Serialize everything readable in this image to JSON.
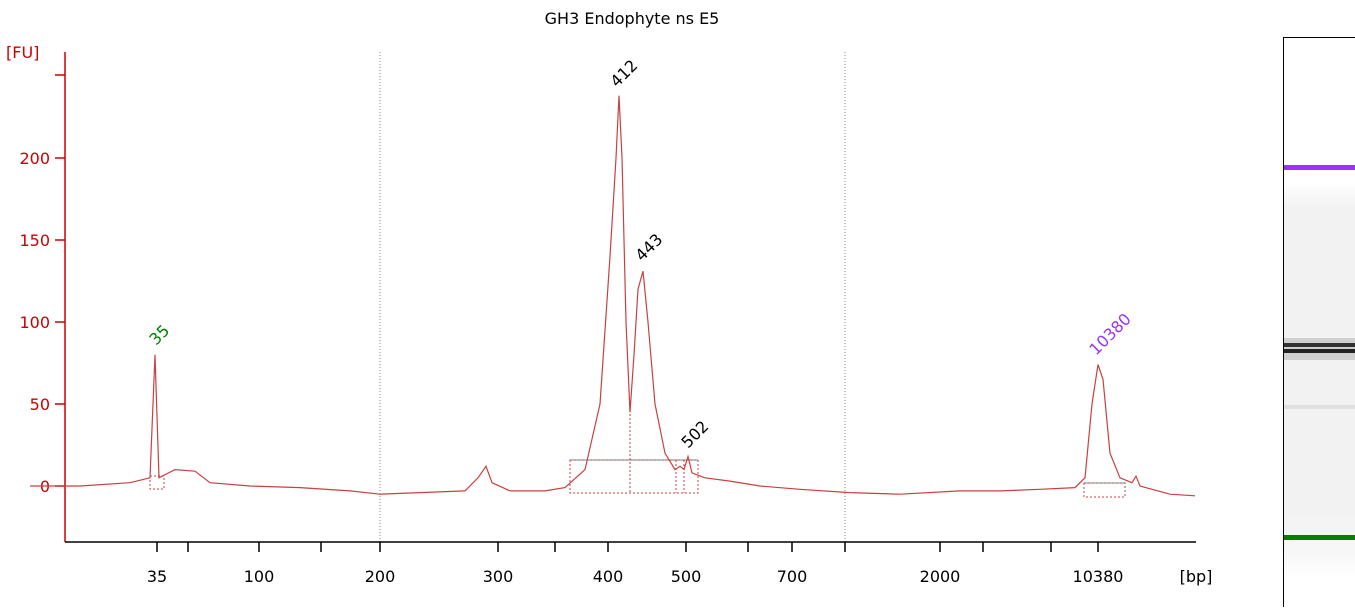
{
  "chart_data": {
    "type": "line",
    "title": "GH3 Endophyte ns E5",
    "ylabel": "[FU]",
    "xlabel": "[bp]",
    "ylim": [
      -35,
      260
    ],
    "yticks": [
      0,
      50,
      100,
      150,
      200
    ],
    "xtick_labels": [
      "35",
      "100",
      "200",
      "300",
      "400",
      "500",
      "700",
      "2000",
      "10380"
    ],
    "colors": {
      "trace": "#c84040",
      "axis": "#cc0000",
      "lower_marker": "#008000",
      "upper_marker": "#9933ff",
      "baseline": "#4a9a9a"
    },
    "peaks": [
      {
        "label": "35",
        "fu": 80,
        "color": "#008000"
      },
      {
        "label": "412",
        "fu": 238,
        "color": "#000000"
      },
      {
        "label": "443",
        "fu": 131,
        "color": "#000000"
      },
      {
        "label": "502",
        "fu": 18,
        "color": "#000000"
      },
      {
        "label": "10380",
        "fu": 74,
        "color": "#9933ff"
      }
    ],
    "trace_points": [
      [
        30,
        0
      ],
      [
        80,
        0
      ],
      [
        130,
        2
      ],
      [
        150,
        5
      ],
      [
        155,
        80
      ],
      [
        159,
        5
      ],
      [
        175,
        10
      ],
      [
        195,
        9
      ],
      [
        210,
        2
      ],
      [
        250,
        0
      ],
      [
        300,
        -1
      ],
      [
        350,
        -3
      ],
      [
        380,
        -5
      ],
      [
        420,
        -4
      ],
      [
        465,
        -3
      ],
      [
        478,
        5
      ],
      [
        486,
        12
      ],
      [
        492,
        2
      ],
      [
        510,
        -3
      ],
      [
        545,
        -3
      ],
      [
        565,
        -1
      ],
      [
        585,
        10
      ],
      [
        600,
        50
      ],
      [
        610,
        140
      ],
      [
        616,
        200
      ],
      [
        619,
        238
      ],
      [
        622,
        200
      ],
      [
        626,
        100
      ],
      [
        630,
        45
      ],
      [
        634,
        80
      ],
      [
        638,
        120
      ],
      [
        643,
        131
      ],
      [
        648,
        100
      ],
      [
        655,
        50
      ],
      [
        665,
        20
      ],
      [
        675,
        10
      ],
      [
        680,
        12
      ],
      [
        684,
        10
      ],
      [
        688,
        18
      ],
      [
        692,
        8
      ],
      [
        705,
        5
      ],
      [
        730,
        3
      ],
      [
        760,
        0
      ],
      [
        800,
        -2
      ],
      [
        850,
        -4
      ],
      [
        900,
        -5
      ],
      [
        960,
        -3
      ],
      [
        1000,
        -3
      ],
      [
        1040,
        -2
      ],
      [
        1075,
        -1
      ],
      [
        1085,
        5
      ],
      [
        1092,
        50
      ],
      [
        1098,
        74
      ],
      [
        1103,
        65
      ],
      [
        1110,
        20
      ],
      [
        1120,
        5
      ],
      [
        1132,
        2
      ],
      [
        1136,
        6
      ],
      [
        1140,
        0
      ],
      [
        1170,
        -5
      ],
      [
        1195,
        -6
      ]
    ]
  }
}
